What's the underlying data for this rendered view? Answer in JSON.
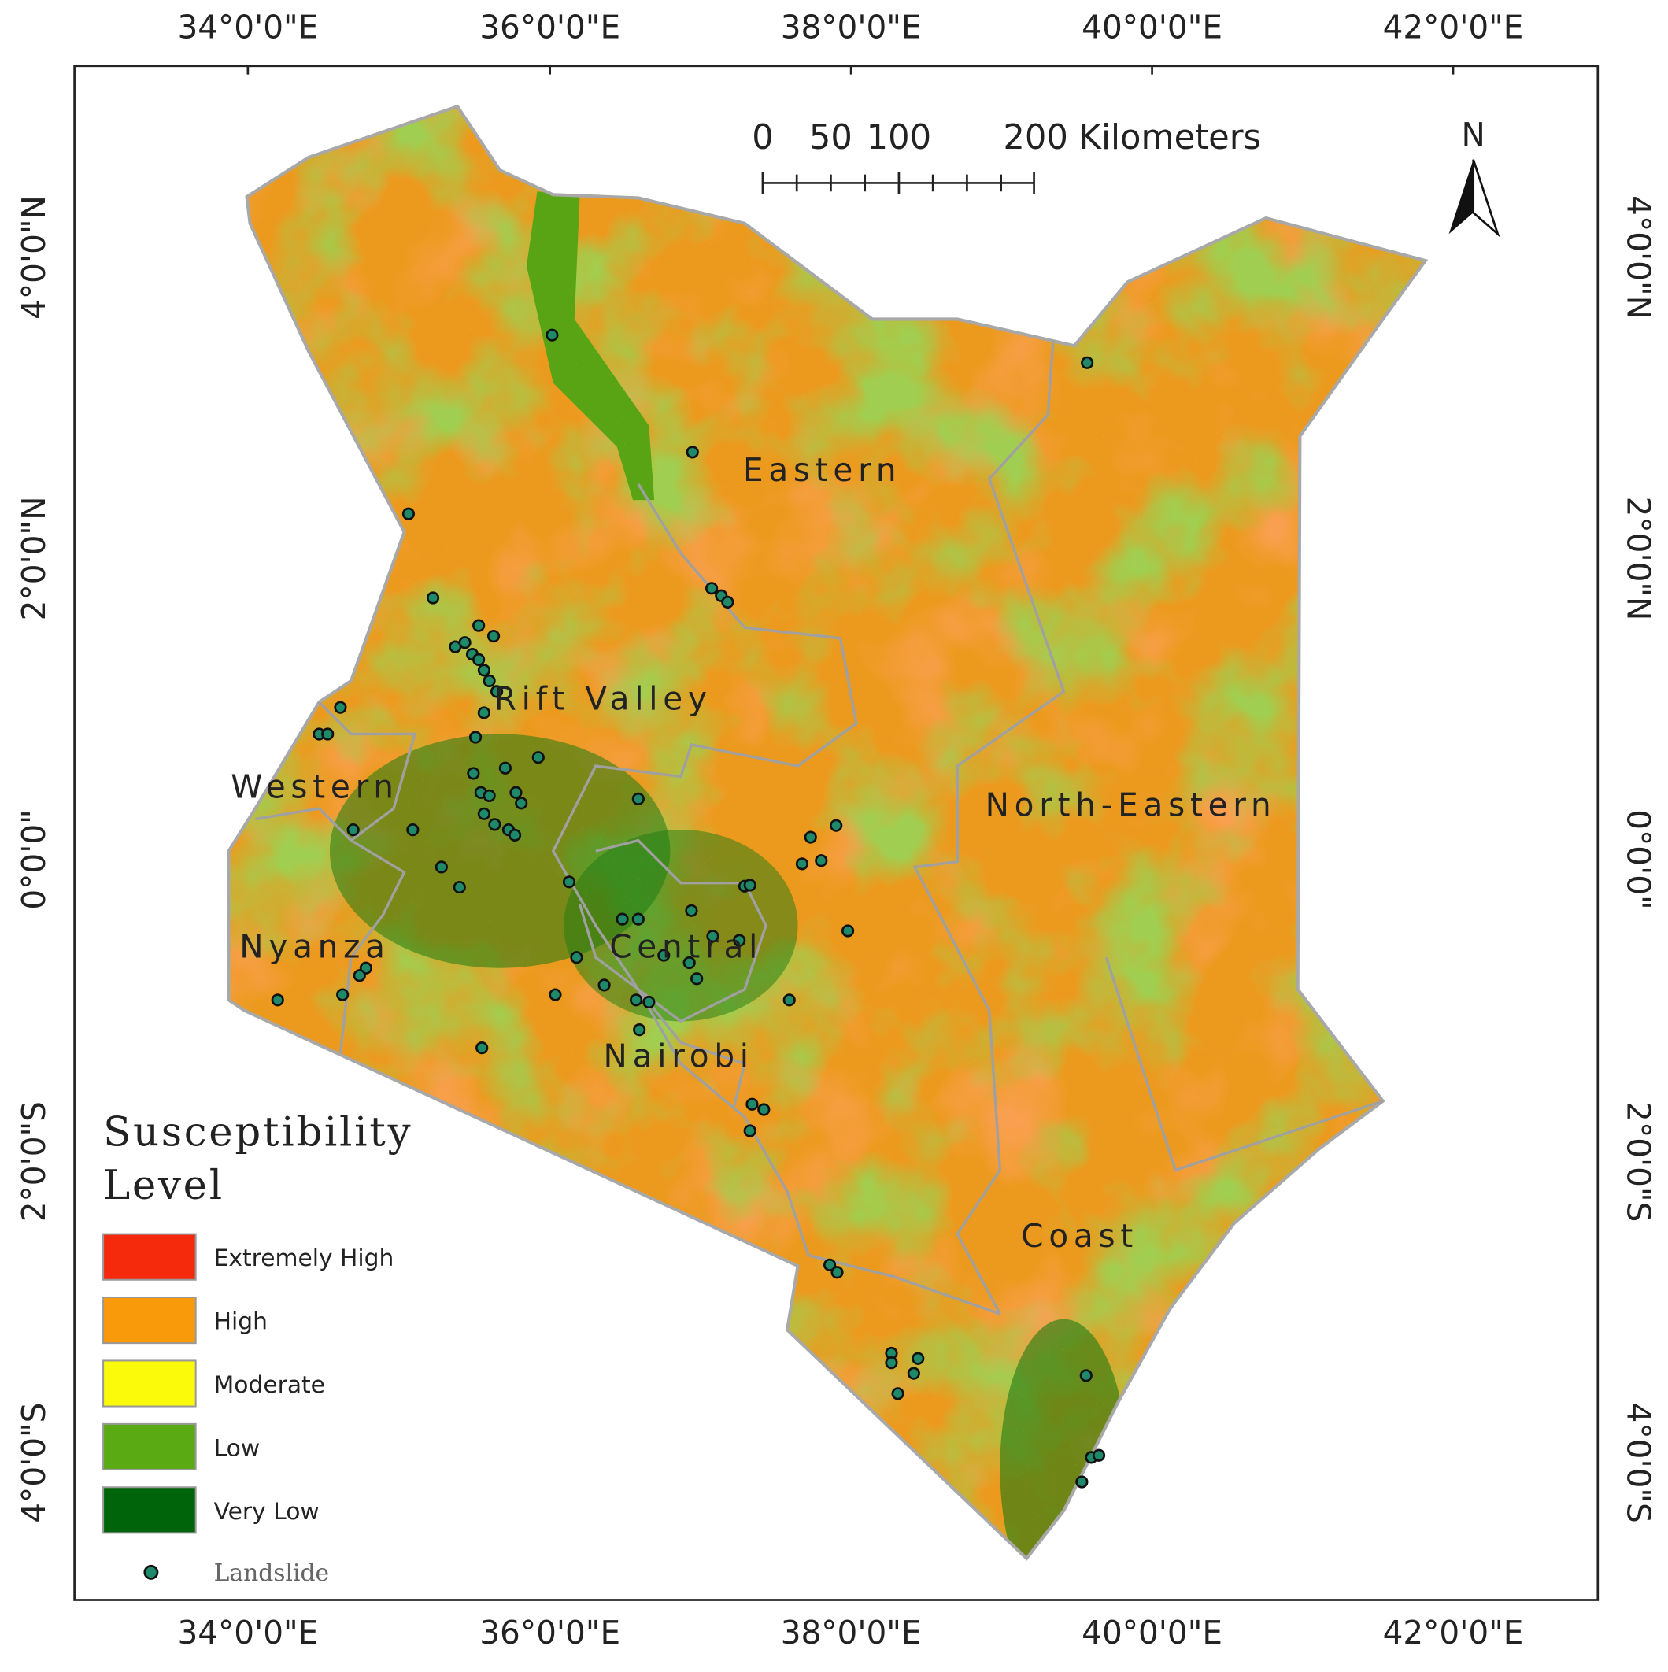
{
  "map": {
    "longitude_labels": [
      "34°0'0\"E",
      "36°0'0\"E",
      "38°0'0\"E",
      "40°0'0\"E",
      "42°0'0\"E"
    ],
    "latitude_labels": [
      "4°0'0\"N",
      "2°0'0\"N",
      "0°0'0\"",
      "2°0'0\"S",
      "4°0'0\"S"
    ],
    "regions": [
      "Eastern",
      "Rift Valley",
      "Western",
      "Nyanza",
      "Central",
      "Nairobi",
      "North-Eastern",
      "Coast"
    ],
    "scale_bar": {
      "labels": [
        "0",
        "50",
        "100",
        "200 Kilometers"
      ]
    },
    "north": "N",
    "legend": {
      "title": [
        "Susceptibility",
        "Level"
      ],
      "items": [
        {
          "label": "Extremely High",
          "color": "#f52a0c"
        },
        {
          "label": "High",
          "color": "#f89a0a"
        },
        {
          "label": "Moderate",
          "color": "#fafa0a"
        },
        {
          "label": "Low",
          "color": "#5aaa14"
        },
        {
          "label": "Very Low",
          "color": "#00640a"
        }
      ],
      "landslide": "Landslide"
    }
  }
}
